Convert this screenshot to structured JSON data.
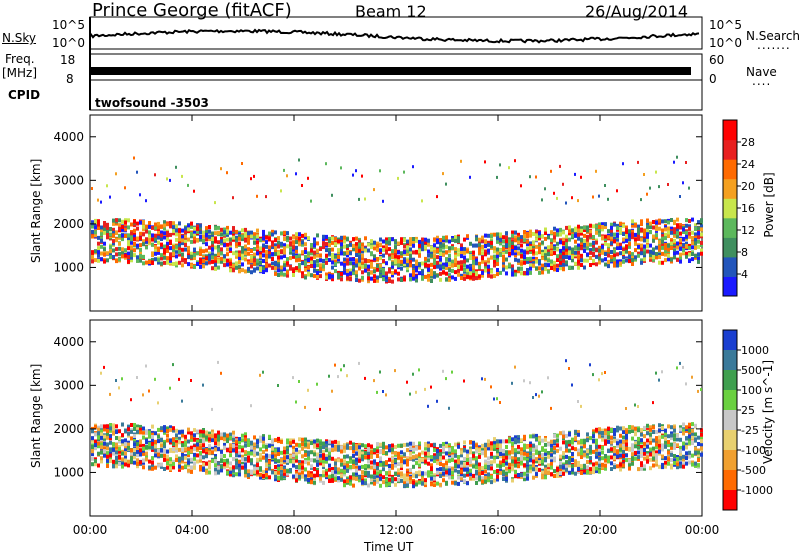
{
  "header": {
    "radar": "Prince George (fitACF)",
    "beam": "Beam 12",
    "date": "26/Aug/2014"
  },
  "noise_panel": {
    "left_label": "N.Sky",
    "left_top": "10^5",
    "left_bottom": "10^0",
    "right_top": "10^5",
    "right_bottom": "10^0",
    "right_label": "N.Search"
  },
  "freq_panel": {
    "label_line1": "Freq.",
    "label_line2": "[MHz]",
    "left_top": "18",
    "left_bottom": "8",
    "right_top": "60",
    "right_bottom": "0",
    "right_label": "Nave"
  },
  "cpid_panel": {
    "label": "CPID",
    "value": "twofsound -3503"
  },
  "time_axis": {
    "label": "Time UT",
    "ticks": [
      "00:00",
      "04:00",
      "08:00",
      "12:00",
      "16:00",
      "20:00",
      "00:00"
    ]
  },
  "colors": {
    "power_scale": [
      "#1a1aff",
      "#2255bb",
      "#3f8f5f",
      "#5cb85c",
      "#c8e64c",
      "#f4a020",
      "#ff6a00",
      "#e82020",
      "#ff0000"
    ],
    "velocity_scale": [
      "#1a3fd0",
      "#3a7a9a",
      "#3f9f4f",
      "#6ad040",
      "#c8c8c8",
      "#e8d070",
      "#f0a030",
      "#ff6a00",
      "#ff0000"
    ]
  },
  "chart_data": [
    {
      "type": "heatmap",
      "name": "power",
      "ylabel": "Slant Range [km]",
      "yticks": [
        "1000",
        "2000",
        "3000",
        "4000"
      ],
      "ylim": [
        0,
        4500
      ],
      "colorbar_label": "Power [dB]",
      "colorbar_ticks": [
        "4",
        "8",
        "12",
        "16",
        "20",
        "24",
        "28"
      ],
      "xlim_hours": [
        0,
        24
      ]
    },
    {
      "type": "heatmap",
      "name": "velocity",
      "ylabel": "Slant Range [km]",
      "yticks": [
        "1000",
        "2000",
        "3000",
        "4000"
      ],
      "ylim": [
        0,
        4500
      ],
      "colorbar_label": "Velocity [m s^-1]",
      "colorbar_ticks": [
        "1000",
        "500",
        "100",
        "25",
        "-25",
        "-100",
        "-500",
        "-1000"
      ],
      "xlim_hours": [
        0,
        24
      ]
    }
  ]
}
